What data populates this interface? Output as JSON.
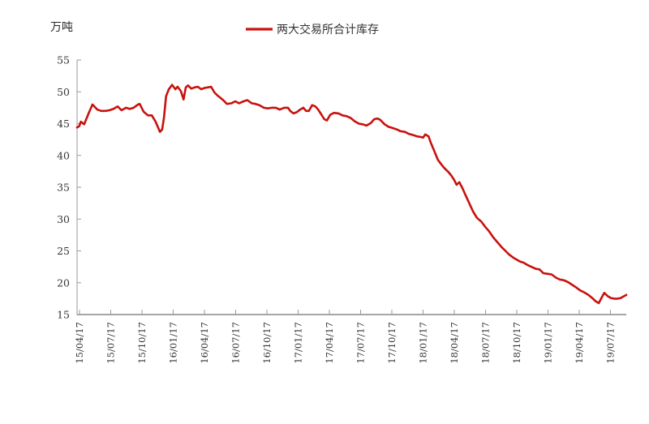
{
  "chart_data": {
    "type": "line",
    "title": "",
    "ylabel": "万吨",
    "xlabel": "",
    "series_name": "两大交易所合计库存",
    "legend_position": "top-center",
    "grid": false,
    "line_color": "#C9110D",
    "axis_color": "#9a9a9a",
    "ylim": [
      15,
      55
    ],
    "y_tick_step": 5,
    "y_ticks": [
      55,
      50,
      45,
      40,
      35,
      30,
      25,
      20,
      15
    ],
    "x_tick_labels": [
      "15/04/17",
      "15/07/17",
      "15/10/17",
      "16/01/17",
      "16/04/17",
      "16/07/17",
      "16/10/17",
      "17/01/17",
      "17/04/17",
      "17/07/17",
      "17/10/17",
      "18/01/17",
      "18/04/17",
      "18/10/17",
      "18/07/17",
      "19/01/17",
      "19/04/17",
      "19/07/17"
    ],
    "x_tick_labels_ordered": [
      "15/04/17",
      "15/07/17",
      "15/10/17",
      "16/01/17",
      "16/04/17",
      "16/07/17",
      "16/10/17",
      "17/01/17",
      "17/04/17",
      "17/07/17",
      "17/10/17",
      "18/01/17",
      "18/04/17",
      "18/07/17",
      "18/10/17",
      "19/01/17",
      "19/04/17",
      "19/07/17"
    ],
    "points": [
      [
        0.0,
        44.4
      ],
      [
        0.004,
        44.6
      ],
      [
        0.007,
        45.3
      ],
      [
        0.013,
        44.9
      ],
      [
        0.021,
        46.6
      ],
      [
        0.028,
        48.0
      ],
      [
        0.037,
        47.2
      ],
      [
        0.044,
        47.0
      ],
      [
        0.052,
        47.0
      ],
      [
        0.059,
        47.1
      ],
      [
        0.066,
        47.3
      ],
      [
        0.074,
        47.7
      ],
      [
        0.081,
        47.1
      ],
      [
        0.089,
        47.5
      ],
      [
        0.096,
        47.3
      ],
      [
        0.103,
        47.5
      ],
      [
        0.111,
        48.0
      ],
      [
        0.114,
        48.1
      ],
      [
        0.121,
        46.9
      ],
      [
        0.129,
        46.3
      ],
      [
        0.136,
        46.3
      ],
      [
        0.143,
        45.3
      ],
      [
        0.151,
        43.7
      ],
      [
        0.155,
        44.1
      ],
      [
        0.158,
        45.8
      ],
      [
        0.162,
        49.3
      ],
      [
        0.167,
        50.4
      ],
      [
        0.173,
        51.1
      ],
      [
        0.179,
        50.4
      ],
      [
        0.183,
        50.8
      ],
      [
        0.189,
        50.1
      ],
      [
        0.194,
        48.8
      ],
      [
        0.198,
        50.7
      ],
      [
        0.202,
        51.0
      ],
      [
        0.208,
        50.5
      ],
      [
        0.214,
        50.7
      ],
      [
        0.22,
        50.8
      ],
      [
        0.226,
        50.4
      ],
      [
        0.232,
        50.6
      ],
      [
        0.238,
        50.7
      ],
      [
        0.244,
        50.8
      ],
      [
        0.25,
        49.9
      ],
      [
        0.256,
        49.4
      ],
      [
        0.259,
        49.2
      ],
      [
        0.266,
        48.7
      ],
      [
        0.273,
        48.1
      ],
      [
        0.281,
        48.2
      ],
      [
        0.288,
        48.5
      ],
      [
        0.295,
        48.2
      ],
      [
        0.303,
        48.5
      ],
      [
        0.31,
        48.7
      ],
      [
        0.318,
        48.2
      ],
      [
        0.325,
        48.1
      ],
      [
        0.332,
        47.9
      ],
      [
        0.34,
        47.5
      ],
      [
        0.347,
        47.4
      ],
      [
        0.355,
        47.5
      ],
      [
        0.362,
        47.5
      ],
      [
        0.369,
        47.2
      ],
      [
        0.377,
        47.5
      ],
      [
        0.384,
        47.5
      ],
      [
        0.388,
        47.0
      ],
      [
        0.394,
        46.6
      ],
      [
        0.4,
        46.8
      ],
      [
        0.406,
        47.2
      ],
      [
        0.412,
        47.5
      ],
      [
        0.417,
        47.0
      ],
      [
        0.422,
        47.0
      ],
      [
        0.428,
        47.9
      ],
      [
        0.434,
        47.7
      ],
      [
        0.439,
        47.2
      ],
      [
        0.445,
        46.4
      ],
      [
        0.45,
        45.7
      ],
      [
        0.455,
        45.5
      ],
      [
        0.461,
        46.4
      ],
      [
        0.468,
        46.7
      ],
      [
        0.476,
        46.6
      ],
      [
        0.483,
        46.3
      ],
      [
        0.49,
        46.2
      ],
      [
        0.498,
        45.9
      ],
      [
        0.505,
        45.4
      ],
      [
        0.513,
        45.0
      ],
      [
        0.52,
        44.9
      ],
      [
        0.527,
        44.7
      ],
      [
        0.535,
        45.1
      ],
      [
        0.541,
        45.7
      ],
      [
        0.547,
        45.8
      ],
      [
        0.552,
        45.6
      ],
      [
        0.56,
        44.9
      ],
      [
        0.567,
        44.5
      ],
      [
        0.575,
        44.3
      ],
      [
        0.582,
        44.1
      ],
      [
        0.589,
        43.8
      ],
      [
        0.597,
        43.7
      ],
      [
        0.604,
        43.4
      ],
      [
        0.612,
        43.2
      ],
      [
        0.619,
        43.0
      ],
      [
        0.626,
        42.9
      ],
      [
        0.63,
        42.8
      ],
      [
        0.634,
        43.3
      ],
      [
        0.64,
        43.0
      ],
      [
        0.644,
        42.0
      ],
      [
        0.65,
        40.8
      ],
      [
        0.657,
        39.3
      ],
      [
        0.665,
        38.4
      ],
      [
        0.669,
        38.0
      ],
      [
        0.675,
        37.5
      ],
      [
        0.681,
        36.9
      ],
      [
        0.687,
        36.1
      ],
      [
        0.691,
        35.4
      ],
      [
        0.696,
        35.8
      ],
      [
        0.702,
        34.8
      ],
      [
        0.706,
        34.0
      ],
      [
        0.713,
        32.7
      ],
      [
        0.721,
        31.2
      ],
      [
        0.728,
        30.2
      ],
      [
        0.736,
        29.6
      ],
      [
        0.743,
        28.8
      ],
      [
        0.75,
        28.1
      ],
      [
        0.758,
        27.1
      ],
      [
        0.765,
        26.4
      ],
      [
        0.773,
        25.6
      ],
      [
        0.78,
        25.0
      ],
      [
        0.787,
        24.4
      ],
      [
        0.795,
        23.9
      ],
      [
        0.801,
        23.6
      ],
      [
        0.807,
        23.3
      ],
      [
        0.812,
        23.2
      ],
      [
        0.82,
        22.8
      ],
      [
        0.827,
        22.5
      ],
      [
        0.835,
        22.2
      ],
      [
        0.842,
        22.1
      ],
      [
        0.849,
        21.5
      ],
      [
        0.857,
        21.4
      ],
      [
        0.864,
        21.3
      ],
      [
        0.872,
        20.8
      ],
      [
        0.879,
        20.5
      ],
      [
        0.886,
        20.4
      ],
      [
        0.894,
        20.1
      ],
      [
        0.901,
        19.7
      ],
      [
        0.908,
        19.3
      ],
      [
        0.916,
        18.8
      ],
      [
        0.923,
        18.5
      ],
      [
        0.931,
        18.1
      ],
      [
        0.938,
        17.6
      ],
      [
        0.944,
        17.1
      ],
      [
        0.95,
        16.8
      ],
      [
        0.956,
        17.8
      ],
      [
        0.96,
        18.4
      ],
      [
        0.966,
        17.9
      ],
      [
        0.972,
        17.6
      ],
      [
        0.978,
        17.5
      ],
      [
        0.984,
        17.5
      ],
      [
        0.99,
        17.6
      ],
      [
        0.996,
        17.9
      ],
      [
        1.0,
        18.1
      ]
    ]
  }
}
